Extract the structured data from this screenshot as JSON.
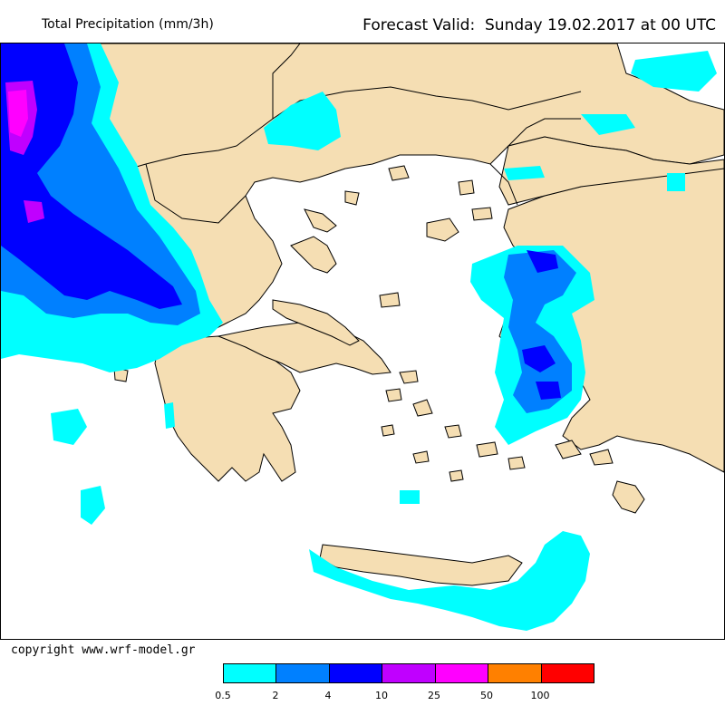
{
  "header": {
    "product_title": "Total Precipitation (mm/3h)",
    "forecast_valid": "Forecast Valid:  Sunday 19.02.2017 at 00 UTC"
  },
  "footer": {
    "copyright": "copyright www.wrf-model.gr"
  },
  "legend": {
    "colors": [
      "#00ffff",
      "#0080ff",
      "#0000ff",
      "#c000ff",
      "#ff00ff",
      "#ff8000",
      "#ff0000"
    ],
    "labels": [
      "0.5",
      "2",
      "4",
      "10",
      "25",
      "50",
      "100"
    ]
  },
  "map": {
    "land_color": "#f5deb3",
    "sea_color": "#ffffff",
    "border_color": "#000000"
  }
}
